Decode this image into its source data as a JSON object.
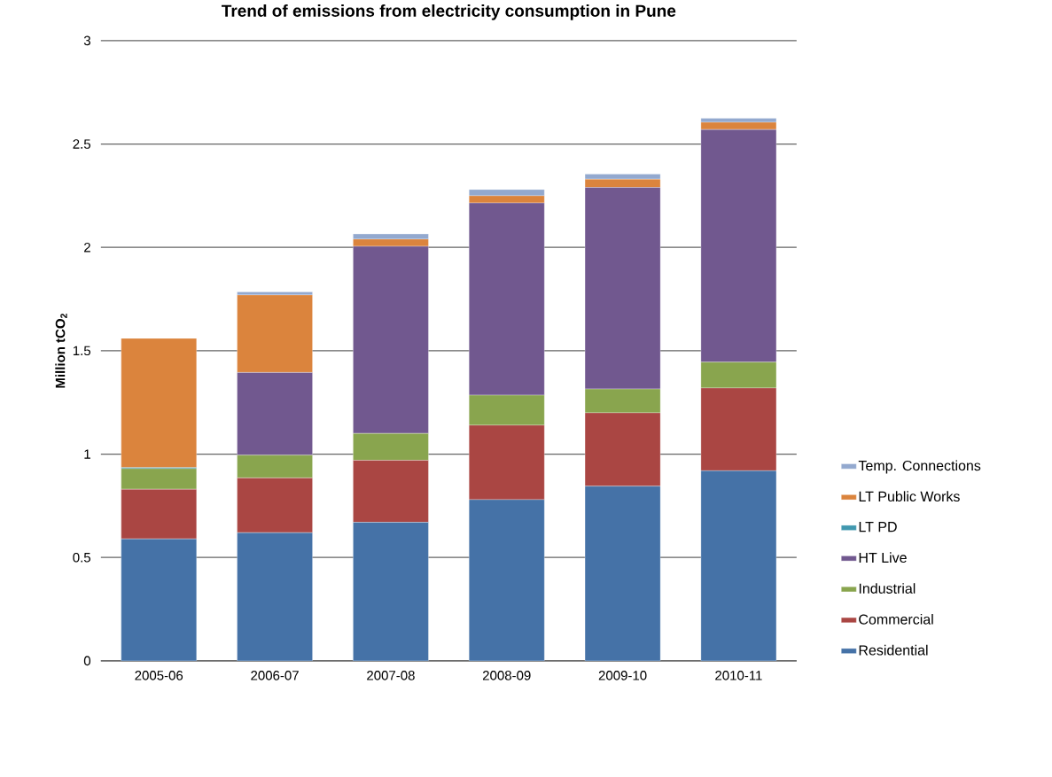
{
  "chart_data": {
    "type": "bar",
    "stacked": true,
    "title": "**Trend of emissions from electricity consumption in Pune**",
    "ylabel": "**Million  tCO$_{2}$**",
    "categories": [
      "2005-06",
      "2006-07",
      "2007-08",
      "2008-09",
      "2009-10",
      "2010-11"
    ],
    "series": [
      {
        "name": "Residential",
        "color": "#4572a7",
        "values": [
          0.59,
          0.62,
          0.67,
          0.78,
          0.845,
          0.92
        ]
      },
      {
        "name": "Commercial",
        "color": "#aa4643",
        "values": [
          0.24,
          0.265,
          0.3,
          0.36,
          0.355,
          0.4
        ]
      },
      {
        "name": "Industrial",
        "color": "#89a54e",
        "values": [
          0.1,
          0.11,
          0.13,
          0.145,
          0.115,
          0.125
        ]
      },
      {
        "name": "HT Live",
        "color": "#71588f",
        "values": [
          0,
          0.4,
          0.905,
          0.93,
          0.975,
          1.125
        ]
      },
      {
        "name": "LT PD",
        "color": "#4198af",
        "values": [
          0.005,
          0,
          0,
          0,
          0,
          0
        ]
      },
      {
        "name": "LT Public Works",
        "color": "#db843d",
        "values": [
          0.625,
          0.375,
          0.035,
          0.035,
          0.04,
          0.035
        ]
      },
      {
        "name": "Temp. Connections",
        "color": "#93a9cf",
        "values": [
          0,
          0.015,
          0.025,
          0.03,
          0.025,
          0.02
        ]
      }
    ],
    "ylim": [
      0,
      3
    ],
    "yticks": [
      0,
      0.5,
      1,
      1.5,
      2,
      2.5,
      3
    ],
    "grid": "y",
    "legend": "right"
  }
}
